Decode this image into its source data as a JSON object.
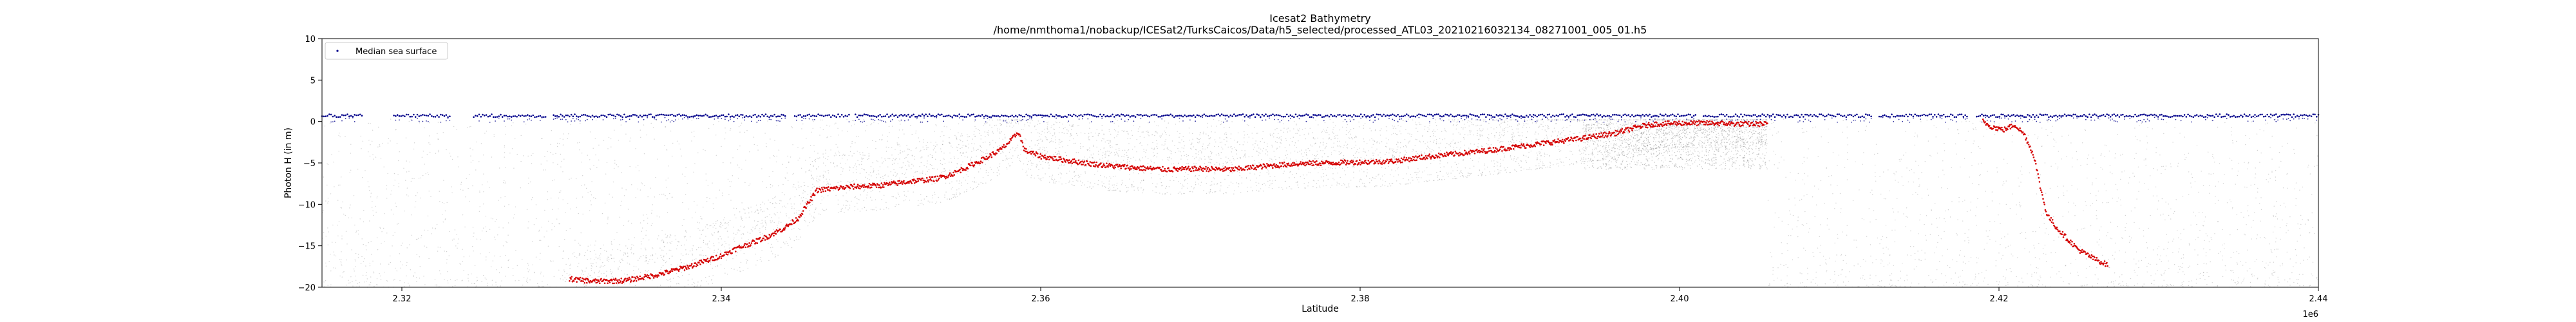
{
  "chart_data": {
    "type": "scatter",
    "title": "Icesat2 Bathymetry",
    "subtitle": "/home/nmthoma1/nobackup/ICESat2/TurksCaicos/Data/h5_selected/processed_ATL03_20210216032134_08271001_005_01.h5",
    "xlabel": "Latitude",
    "ylabel": "Photon H (in m)",
    "x_offset_label": "1e6",
    "xlim": [
      2315000,
      2440000
    ],
    "ylim": [
      -20,
      10
    ],
    "x_ticks": [
      2320000,
      2340000,
      2360000,
      2380000,
      2400000,
      2420000,
      2440000
    ],
    "x_tick_labels": [
      "2.32",
      "2.34",
      "2.36",
      "2.38",
      "2.40",
      "2.42",
      "2.44"
    ],
    "y_ticks": [
      -20,
      -15,
      -10,
      -5,
      0,
      5,
      10
    ],
    "y_tick_labels": [
      "−20",
      "−15",
      "−10",
      "−5",
      "0",
      "5",
      "10"
    ],
    "grid": false,
    "legend_position": "top-left",
    "colors": {
      "sea_surface": "#00008b",
      "bathymetry": "#d40000",
      "photons": "#7f7f7f"
    },
    "series": [
      {
        "name": "Median sea surface",
        "marker": "dot",
        "color": "#00008b",
        "segments": [
          [
            2315000,
            2317500,
            0.7
          ],
          [
            2319500,
            2323000,
            0.7
          ],
          [
            2324500,
            2329000,
            0.7
          ],
          [
            2329500,
            2344000,
            0.7
          ],
          [
            2344600,
            2348000,
            0.7
          ],
          [
            2348400,
            2401000,
            0.7
          ],
          [
            2401500,
            2412000,
            0.7
          ],
          [
            2412500,
            2418000,
            0.7
          ],
          [
            2418600,
            2440000,
            0.7
          ]
        ]
      },
      {
        "marker": "dot",
        "color": "#d40000",
        "x": [
          2330500,
          2332000,
          2334000,
          2336000,
          2338000,
          2340000,
          2341000,
          2342000,
          2343000,
          2344000,
          2344800,
          2346000,
          2348000,
          2350000,
          2352000,
          2353500,
          2354500,
          2355500,
          2356500,
          2357500,
          2358200,
          2358600,
          2359000,
          2360000,
          2362000,
          2364000,
          2366000,
          2368000,
          2370000,
          2372000,
          2374000,
          2376000,
          2378000,
          2380000,
          2382000,
          2384000,
          2386000,
          2388000,
          2390000,
          2392000,
          2394000,
          2396000,
          2397500,
          2398500,
          2400000,
          2402000,
          2404000,
          2405500
        ],
        "y": [
          -19.0,
          -19.3,
          -19.2,
          -18.5,
          -17.5,
          -16.2,
          -15.3,
          -14.6,
          -13.8,
          -12.8,
          -11.7,
          -8.3,
          -7.9,
          -7.7,
          -7.2,
          -6.9,
          -6.3,
          -5.4,
          -4.5,
          -3.4,
          -2.2,
          -1.2,
          -3.5,
          -4.2,
          -4.8,
          -5.3,
          -5.6,
          -5.8,
          -5.7,
          -5.8,
          -5.4,
          -5.1,
          -5.0,
          -4.9,
          -4.8,
          -4.3,
          -3.9,
          -3.5,
          -3.0,
          -2.5,
          -2.0,
          -1.4,
          -0.6,
          -0.3,
          -0.2,
          -0.2,
          -0.3,
          -0.3
        ]
      },
      {
        "marker": "dot",
        "color": "#d40000",
        "x": [
          2419000,
          2419500,
          2420300,
          2421000,
          2421600,
          2422200,
          2422600,
          2423000,
          2423600,
          2424200,
          2425000,
          2426000,
          2426800
        ],
        "y": [
          0.0,
          -0.6,
          -1.0,
          -0.4,
          -1.6,
          -4.2,
          -8.0,
          -11.2,
          -12.8,
          -14.0,
          -15.5,
          -16.6,
          -17.3
        ]
      },
      {
        "marker": "dot",
        "color": "#7f7f7f",
        "region_x": [
          2315000,
          2440000
        ],
        "region_y": [
          -20,
          0.5
        ]
      }
    ]
  }
}
